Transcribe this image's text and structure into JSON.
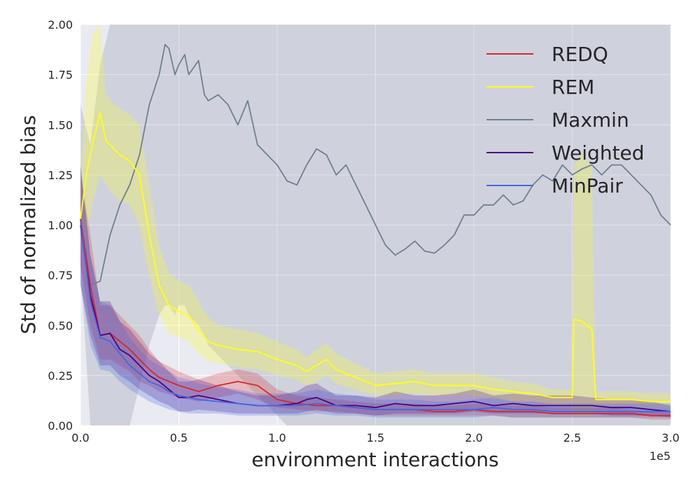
{
  "chart_data": {
    "type": "line",
    "xlabel": "environment interactions",
    "ylabel": "Std of normalized bias",
    "x_offset_label": "1e5",
    "xlim": [
      0,
      3.0
    ],
    "ylim": [
      0,
      2.0
    ],
    "x_ticks": [
      0,
      0.5,
      1.0,
      1.5,
      2.0,
      2.5,
      3.0
    ],
    "x_tick_labels": [
      "0.0",
      "0.5",
      "1.0",
      "1.5",
      "2.0",
      "2.5",
      "3.0"
    ],
    "y_ticks": [
      0,
      0.25,
      0.5,
      0.75,
      1.0,
      1.25,
      1.5,
      1.75,
      2.0
    ],
    "y_tick_labels": [
      "0.00",
      "0.25",
      "0.50",
      "0.75",
      "1.00",
      "1.25",
      "1.50",
      "1.75",
      "2.00"
    ],
    "grid": true,
    "legend_position": "top-right",
    "series": [
      {
        "name": "REDQ",
        "color": "#d62728",
        "x": [
          0,
          0.05,
          0.1,
          0.15,
          0.2,
          0.25,
          0.3,
          0.35,
          0.4,
          0.5,
          0.6,
          0.7,
          0.8,
          0.9,
          1.0,
          1.1,
          1.2,
          1.3,
          1.4,
          1.5,
          1.6,
          1.7,
          1.8,
          1.9,
          2.0,
          2.1,
          2.2,
          2.3,
          2.4,
          2.5,
          2.6,
          2.7,
          2.8,
          2.9,
          3.0
        ],
        "y": [
          1.03,
          0.7,
          0.45,
          0.46,
          0.42,
          0.38,
          0.33,
          0.28,
          0.24,
          0.2,
          0.17,
          0.2,
          0.22,
          0.2,
          0.13,
          0.11,
          0.1,
          0.1,
          0.09,
          0.08,
          0.08,
          0.08,
          0.07,
          0.07,
          0.08,
          0.07,
          0.07,
          0.07,
          0.06,
          0.06,
          0.06,
          0.06,
          0.06,
          0.05,
          0.05
        ],
        "band_lower": [
          0.8,
          0.5,
          0.33,
          0.33,
          0.3,
          0.27,
          0.22,
          0.2,
          0.17,
          0.14,
          0.12,
          0.14,
          0.16,
          0.13,
          0.09,
          0.08,
          0.07,
          0.07,
          0.06,
          0.05,
          0.05,
          0.05,
          0.05,
          0.05,
          0.05,
          0.05,
          0.04,
          0.04,
          0.04,
          0.04,
          0.04,
          0.04,
          0.04,
          0.03,
          0.03
        ],
        "band_upper": [
          1.25,
          0.95,
          0.6,
          0.6,
          0.55,
          0.5,
          0.45,
          0.38,
          0.32,
          0.27,
          0.23,
          0.26,
          0.28,
          0.26,
          0.18,
          0.15,
          0.14,
          0.13,
          0.12,
          0.11,
          0.11,
          0.11,
          0.1,
          0.1,
          0.11,
          0.1,
          0.1,
          0.1,
          0.09,
          0.09,
          0.09,
          0.09,
          0.08,
          0.07,
          0.07
        ]
      },
      {
        "name": "REM",
        "color": "#ffff14",
        "x": [
          0,
          0.03,
          0.06,
          0.1,
          0.13,
          0.17,
          0.2,
          0.25,
          0.3,
          0.35,
          0.4,
          0.45,
          0.5,
          0.55,
          0.6,
          0.65,
          0.7,
          0.8,
          0.9,
          1.0,
          1.1,
          1.15,
          1.2,
          1.25,
          1.3,
          1.4,
          1.5,
          1.6,
          1.7,
          1.8,
          1.9,
          2.0,
          2.1,
          2.2,
          2.3,
          2.4,
          2.5,
          2.51,
          2.55,
          2.6,
          2.62,
          2.7,
          2.8,
          2.9,
          3.0
        ],
        "y": [
          1.03,
          1.25,
          1.4,
          1.56,
          1.42,
          1.38,
          1.35,
          1.32,
          1.25,
          0.95,
          0.7,
          0.6,
          0.57,
          0.55,
          0.48,
          0.42,
          0.4,
          0.38,
          0.37,
          0.33,
          0.3,
          0.27,
          0.3,
          0.33,
          0.28,
          0.24,
          0.2,
          0.21,
          0.22,
          0.2,
          0.2,
          0.2,
          0.18,
          0.17,
          0.16,
          0.14,
          0.14,
          0.53,
          0.52,
          0.48,
          0.13,
          0.13,
          0.13,
          0.12,
          0.12
        ],
        "band_lower": [
          0.9,
          0.95,
          1.1,
          1.25,
          1.2,
          1.15,
          1.12,
          1.1,
          1.0,
          0.75,
          0.55,
          0.46,
          0.44,
          0.42,
          0.36,
          0.32,
          0.31,
          0.29,
          0.28,
          0.25,
          0.23,
          0.2,
          0.22,
          0.25,
          0.21,
          0.18,
          0.15,
          0.15,
          0.16,
          0.15,
          0.15,
          0.15,
          0.13,
          0.12,
          0.12,
          0.1,
          0.1,
          0.05,
          0.05,
          0.05,
          0.09,
          0.1,
          0.1,
          0.09,
          0.09
        ],
        "band_upper": [
          1.2,
          1.7,
          1.95,
          2.0,
          1.65,
          1.6,
          1.58,
          1.55,
          1.5,
          1.2,
          0.9,
          0.76,
          0.72,
          0.7,
          0.62,
          0.54,
          0.5,
          0.48,
          0.46,
          0.42,
          0.38,
          0.34,
          0.38,
          0.41,
          0.36,
          0.31,
          0.26,
          0.27,
          0.28,
          0.26,
          0.26,
          0.26,
          0.24,
          0.22,
          0.21,
          0.18,
          0.18,
          1.3,
          1.35,
          1.3,
          0.17,
          0.17,
          0.17,
          0.16,
          0.16
        ]
      },
      {
        "name": "Maxmin",
        "color": "#708090",
        "x": [
          0,
          0.05,
          0.1,
          0.15,
          0.2,
          0.25,
          0.3,
          0.35,
          0.4,
          0.43,
          0.45,
          0.48,
          0.5,
          0.53,
          0.55,
          0.6,
          0.63,
          0.65,
          0.7,
          0.75,
          0.8,
          0.85,
          0.9,
          0.95,
          1.0,
          1.05,
          1.1,
          1.15,
          1.2,
          1.25,
          1.3,
          1.35,
          1.4,
          1.45,
          1.5,
          1.55,
          1.6,
          1.65,
          1.7,
          1.75,
          1.8,
          1.85,
          1.9,
          1.95,
          2.0,
          2.05,
          2.1,
          2.15,
          2.2,
          2.25,
          2.3,
          2.35,
          2.4,
          2.45,
          2.5,
          2.55,
          2.6,
          2.65,
          2.7,
          2.75,
          2.8,
          2.85,
          2.9,
          2.95,
          3.0
        ],
        "y": [
          1.03,
          0.7,
          0.72,
          0.95,
          1.1,
          1.2,
          1.35,
          1.6,
          1.75,
          1.9,
          1.88,
          1.75,
          1.8,
          1.85,
          1.75,
          1.82,
          1.65,
          1.62,
          1.65,
          1.6,
          1.5,
          1.62,
          1.4,
          1.35,
          1.3,
          1.22,
          1.2,
          1.3,
          1.38,
          1.35,
          1.25,
          1.3,
          1.2,
          1.1,
          1.0,
          0.9,
          0.85,
          0.88,
          0.92,
          0.87,
          0.86,
          0.9,
          0.95,
          1.05,
          1.05,
          1.1,
          1.1,
          1.15,
          1.1,
          1.12,
          1.2,
          1.25,
          1.22,
          1.3,
          1.25,
          1.28,
          1.3,
          1.25,
          1.3,
          1.3,
          1.25,
          1.2,
          1.15,
          1.05,
          1.0
        ],
        "band_lower": [
          0.8,
          0.0,
          0.0,
          0.0,
          0.0,
          0.0,
          0.2,
          0.4,
          0.55,
          0.6,
          0.6,
          0.55,
          0.6,
          0.6,
          0.55,
          0.5,
          0.45,
          0.4,
          0.35,
          0.3,
          0.25,
          0.2,
          0.15,
          0.1,
          0.05,
          0.0,
          0.0,
          0.0,
          0.0,
          0.0,
          0.0,
          0.0,
          0.0,
          0.0,
          0.0,
          0.0,
          0.0,
          0.0,
          0.0,
          0.0,
          0.0,
          0.0,
          0.0,
          0.0,
          0.0,
          0.0,
          0.0,
          0.0,
          0.0,
          0.0,
          0.0,
          0.0,
          0.0,
          0.0,
          0.0,
          0.0,
          0.0,
          0.0,
          0.0,
          0.0,
          0.0,
          0.0,
          0.0,
          0.0,
          0.0
        ],
        "band_upper": [
          1.6,
          1.4,
          1.8,
          2.0,
          2.0,
          2.0,
          2.0,
          2.0,
          2.0,
          2.0,
          2.0,
          2.0,
          2.0,
          2.0,
          2.0,
          2.0,
          2.0,
          2.0,
          2.0,
          2.0,
          2.0,
          2.0,
          2.0,
          2.0,
          2.0,
          2.0,
          2.0,
          2.0,
          2.0,
          2.0,
          2.0,
          2.0,
          2.0,
          2.0,
          2.0,
          2.0,
          2.0,
          2.0,
          2.0,
          2.0,
          2.0,
          2.0,
          2.0,
          2.0,
          2.0,
          2.0,
          2.0,
          2.0,
          2.0,
          2.0,
          2.0,
          2.0,
          2.0,
          2.0,
          2.0,
          2.0,
          2.0,
          2.0,
          2.0,
          2.0,
          2.0,
          2.0,
          2.0,
          2.0,
          2.0
        ]
      },
      {
        "name": "Weighted",
        "color": "#4b0082",
        "x": [
          0,
          0.05,
          0.1,
          0.15,
          0.2,
          0.25,
          0.3,
          0.35,
          0.4,
          0.45,
          0.5,
          0.55,
          0.6,
          0.7,
          0.8,
          0.9,
          1.0,
          1.1,
          1.15,
          1.2,
          1.25,
          1.3,
          1.4,
          1.5,
          1.6,
          1.7,
          1.8,
          1.9,
          2.0,
          2.1,
          2.2,
          2.3,
          2.4,
          2.5,
          2.6,
          2.7,
          2.8,
          2.9,
          3.0
        ],
        "y": [
          1.0,
          0.65,
          0.45,
          0.46,
          0.38,
          0.35,
          0.3,
          0.25,
          0.22,
          0.18,
          0.14,
          0.14,
          0.15,
          0.13,
          0.11,
          0.1,
          0.1,
          0.11,
          0.13,
          0.14,
          0.12,
          0.1,
          0.1,
          0.09,
          0.11,
          0.1,
          0.1,
          0.11,
          0.12,
          0.1,
          0.11,
          0.1,
          0.1,
          0.1,
          0.1,
          0.09,
          0.09,
          0.08,
          0.07
        ],
        "band_lower": [
          0.7,
          0.45,
          0.3,
          0.3,
          0.25,
          0.22,
          0.18,
          0.15,
          0.12,
          0.1,
          0.07,
          0.07,
          0.08,
          0.07,
          0.06,
          0.06,
          0.06,
          0.06,
          0.07,
          0.08,
          0.07,
          0.06,
          0.06,
          0.05,
          0.06,
          0.06,
          0.06,
          0.06,
          0.07,
          0.06,
          0.06,
          0.06,
          0.06,
          0.06,
          0.06,
          0.05,
          0.05,
          0.05,
          0.04
        ],
        "band_upper": [
          1.3,
          0.85,
          0.62,
          0.62,
          0.52,
          0.48,
          0.42,
          0.36,
          0.32,
          0.27,
          0.22,
          0.22,
          0.23,
          0.2,
          0.17,
          0.15,
          0.15,
          0.17,
          0.2,
          0.21,
          0.18,
          0.15,
          0.15,
          0.14,
          0.17,
          0.15,
          0.15,
          0.16,
          0.18,
          0.15,
          0.16,
          0.15,
          0.15,
          0.15,
          0.14,
          0.13,
          0.13,
          0.12,
          0.1
        ]
      },
      {
        "name": "MinPair",
        "color": "#4169e1",
        "x": [
          0,
          0.05,
          0.1,
          0.15,
          0.2,
          0.25,
          0.3,
          0.35,
          0.4,
          0.45,
          0.5,
          0.55,
          0.6,
          0.7,
          0.8,
          0.9,
          1.0,
          1.1,
          1.2,
          1.3,
          1.4,
          1.5,
          1.6,
          1.7,
          1.8,
          1.9,
          2.0,
          2.1,
          2.2,
          2.3,
          2.4,
          2.5,
          2.6,
          2.7,
          2.8,
          2.9,
          3.0
        ],
        "y": [
          1.02,
          0.62,
          0.44,
          0.42,
          0.36,
          0.3,
          0.26,
          0.22,
          0.2,
          0.17,
          0.15,
          0.14,
          0.13,
          0.12,
          0.11,
          0.1,
          0.1,
          0.1,
          0.11,
          0.1,
          0.09,
          0.08,
          0.08,
          0.08,
          0.08,
          0.08,
          0.08,
          0.09,
          0.08,
          0.08,
          0.07,
          0.07,
          0.07,
          0.07,
          0.07,
          0.07,
          0.07
        ],
        "band_lower": [
          0.7,
          0.4,
          0.28,
          0.27,
          0.22,
          0.18,
          0.15,
          0.12,
          0.1,
          0.08,
          0.07,
          0.06,
          0.06,
          0.06,
          0.05,
          0.05,
          0.05,
          0.05,
          0.06,
          0.05,
          0.05,
          0.04,
          0.04,
          0.04,
          0.04,
          0.04,
          0.04,
          0.05,
          0.04,
          0.04,
          0.04,
          0.04,
          0.04,
          0.04,
          0.04,
          0.04,
          0.04
        ],
        "band_upper": [
          1.3,
          0.85,
          0.62,
          0.6,
          0.52,
          0.44,
          0.38,
          0.33,
          0.3,
          0.27,
          0.24,
          0.23,
          0.21,
          0.19,
          0.18,
          0.16,
          0.16,
          0.16,
          0.18,
          0.16,
          0.15,
          0.13,
          0.13,
          0.13,
          0.12,
          0.12,
          0.13,
          0.14,
          0.12,
          0.12,
          0.11,
          0.11,
          0.11,
          0.11,
          0.11,
          0.11,
          0.11
        ]
      }
    ]
  },
  "style": {
    "plot_background": "#eaeaf2",
    "grid_color": "#ffffff",
    "text_color": "#262626"
  }
}
